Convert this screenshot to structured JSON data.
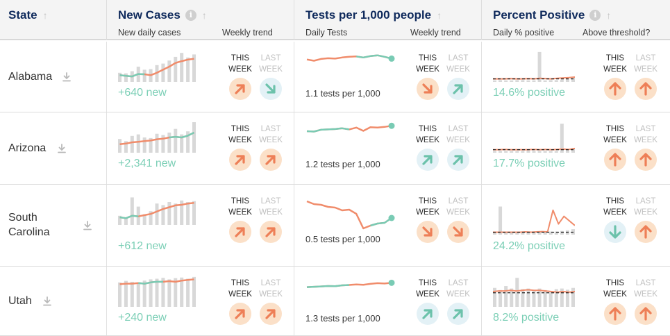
{
  "colors": {
    "header_title": "#0f2a5c",
    "value_teal": "#7ccfb6",
    "trend_orange": "#f08c6b",
    "trend_teal": "#79cbb4",
    "bar_gray": "#d8d8d8",
    "arrow_bg_orange": "#fbe0c8",
    "arrow_bg_teal": "#e3f1f6"
  },
  "header": {
    "state": {
      "title": "State"
    },
    "new_cases": {
      "title": "New Cases",
      "sub1": "New daily cases",
      "sub2": "Weekly trend"
    },
    "tests": {
      "title": "Tests per 1,000 people",
      "sub1": "Daily Tests",
      "sub2": "Weekly trend"
    },
    "positive": {
      "title": "Percent Positive",
      "sub1": "Daily % positive",
      "sub2": "Above threshold?"
    }
  },
  "labels": {
    "this_week": "THIS WEEK",
    "last_week": "LAST WEEK"
  },
  "icons": {
    "info": "info-icon",
    "sort": "sort-arrow-up-icon",
    "download": "download-icon"
  },
  "rows": [
    {
      "state": "Alabama",
      "cases_value": "+640 new",
      "tests_value": "1.1 tests per 1,000",
      "positive_value": "14.6% positive",
      "cases_trend": {
        "this": {
          "dir": "up-right",
          "color": "orange"
        },
        "last": {
          "dir": "down-right",
          "color": "teal"
        }
      },
      "tests_trend": {
        "this": {
          "dir": "down-right",
          "color": "orange"
        },
        "last": {
          "dir": "up-right",
          "color": "teal"
        }
      },
      "positive_trend": {
        "this": {
          "dir": "up",
          "color": "orange"
        },
        "last": {
          "dir": "up",
          "color": "orange"
        }
      }
    },
    {
      "state": "Arizona",
      "cases_value": "+2,341 new",
      "tests_value": "1.2 tests per 1,000",
      "positive_value": "17.7% positive",
      "cases_trend": {
        "this": {
          "dir": "up-right",
          "color": "orange"
        },
        "last": {
          "dir": "up-right",
          "color": "orange"
        }
      },
      "tests_trend": {
        "this": {
          "dir": "up-right",
          "color": "teal"
        },
        "last": {
          "dir": "up-right",
          "color": "teal"
        }
      },
      "positive_trend": {
        "this": {
          "dir": "up",
          "color": "orange"
        },
        "last": {
          "dir": "up",
          "color": "orange"
        }
      }
    },
    {
      "state": "South Carolina",
      "cases_value": "+612 new",
      "tests_value": "0.5 tests per 1,000",
      "positive_value": "24.2% positive",
      "cases_trend": {
        "this": {
          "dir": "up-right",
          "color": "orange"
        },
        "last": {
          "dir": "up-right",
          "color": "orange"
        }
      },
      "tests_trend": {
        "this": {
          "dir": "down-right",
          "color": "orange"
        },
        "last": {
          "dir": "down-right",
          "color": "orange"
        }
      },
      "positive_trend": {
        "this": {
          "dir": "down",
          "color": "teal"
        },
        "last": {
          "dir": "up",
          "color": "orange"
        }
      }
    },
    {
      "state": "Utah",
      "cases_value": "+240 new",
      "tests_value": "1.3 tests per 1,000",
      "positive_value": "8.2% positive",
      "cases_trend": {
        "this": {
          "dir": "up-right",
          "color": "orange"
        },
        "last": {
          "dir": "up-right",
          "color": "orange"
        }
      },
      "tests_trend": {
        "this": {
          "dir": "up-right",
          "color": "teal"
        },
        "last": {
          "dir": "up-right",
          "color": "teal"
        }
      },
      "positive_trend": {
        "this": {
          "dir": "up",
          "color": "orange"
        },
        "last": {
          "dir": "up",
          "color": "orange"
        }
      }
    }
  ]
}
